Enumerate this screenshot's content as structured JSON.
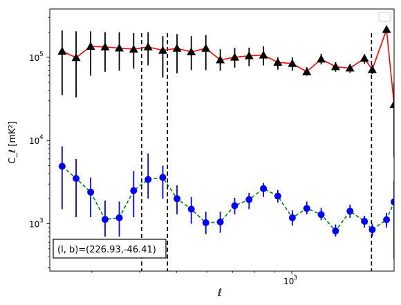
{
  "chart_data": {
    "type": "scatter",
    "xlabel": "ℓ",
    "ylabel": "C_ℓ  [mK²]",
    "xscale": "log",
    "yscale": "log",
    "xlim": [
      233,
      1850
    ],
    "ylim": [
      270,
      380000
    ],
    "x_tick_labels": [
      {
        "value": 1000,
        "base": "10",
        "exp": "3"
      }
    ],
    "y_tick_labels": [
      {
        "value": 1000,
        "base": "10",
        "exp": "3"
      },
      {
        "value": 10000,
        "base": "10",
        "exp": "4"
      },
      {
        "value": 100000,
        "base": "10",
        "exp": "5"
      }
    ],
    "grid": false,
    "legend": {
      "placement": "top-right",
      "entries": []
    },
    "annotation": {
      "text": "(l, b)=(226.93,-46.41)",
      "placement": "bottom-left"
    },
    "vlines": [
      405,
      473,
      1615
    ],
    "series": [
      {
        "marker": "triangle",
        "marker_color": "#000000",
        "line_color": "#ff0000",
        "linestyle": "solid",
        "errorbar_color": "#000000",
        "x": [
          251,
          273,
          298,
          325,
          354,
          386,
          421,
          460,
          501,
          546,
          596,
          650,
          709,
          773,
          843,
          919,
          1003,
          1094,
          1193,
          1301,
          1419,
          1548,
          1622,
          1768
        ],
        "y": [
          118000,
          99000,
          135000,
          133000,
          129000,
          125000,
          133000,
          121000,
          128000,
          116000,
          128000,
          93000,
          100000,
          104000,
          106000,
          87000,
          84000,
          67000,
          95000,
          77000,
          74000,
          97000,
          71000,
          215000
        ],
        "yerr_low": [
          35000,
          33000,
          60000,
          67000,
          69000,
          73000,
          80000,
          57000,
          64000,
          70000,
          70000,
          69000,
          75000,
          78000,
          80000,
          71000,
          69000,
          60000,
          82000,
          67000,
          65000,
          84000,
          63000,
          null
        ],
        "yerr_high": [
          210000,
          205000,
          205000,
          200000,
          200000,
          195000,
          200000,
          180000,
          190000,
          180000,
          185000,
          125000,
          130000,
          130000,
          135000,
          100000,
          100000,
          76000,
          110000,
          87000,
          82000,
          109000,
          81000,
          null
        ],
        "extra_point": {
          "x": 1850,
          "y": 27000,
          "yerr_low": 6300,
          "yerr_high": 49000
        }
      },
      {
        "marker": "circle",
        "marker_color": "#0000ff",
        "line_color": "#008000",
        "linestyle": "dashed",
        "errorbar_color": "#0000ff",
        "x": [
          251,
          273,
          298,
          325,
          354,
          386,
          421,
          460,
          501,
          546,
          596,
          650,
          709,
          773,
          843,
          919,
          1003,
          1094,
          1193,
          1301,
          1419,
          1548,
          1622,
          1768,
          1850
        ],
        "y": [
          4900,
          3500,
          2400,
          1130,
          1180,
          2500,
          3400,
          3600,
          2000,
          1500,
          1030,
          1050,
          1650,
          1950,
          2650,
          2150,
          1180,
          1530,
          1290,
          820,
          1420,
          1070,
          850,
          1120,
          1830
        ],
        "yerr_low": [
          1500,
          1200,
          1200,
          700,
          700,
          1200,
          2000,
          2000,
          1300,
          1000,
          750,
          780,
          1300,
          1500,
          2100,
          1800,
          950,
          1300,
          1100,
          700,
          1180,
          900,
          700,
          900,
          380
        ],
        "yerr_high": [
          8500,
          6000,
          3600,
          1900,
          1850,
          4300,
          7000,
          5000,
          2900,
          2100,
          1400,
          1400,
          2050,
          2350,
          3100,
          2550,
          1450,
          1850,
          1550,
          980,
          1700,
          1250,
          1000,
          1350,
          3300
        ]
      }
    ]
  }
}
